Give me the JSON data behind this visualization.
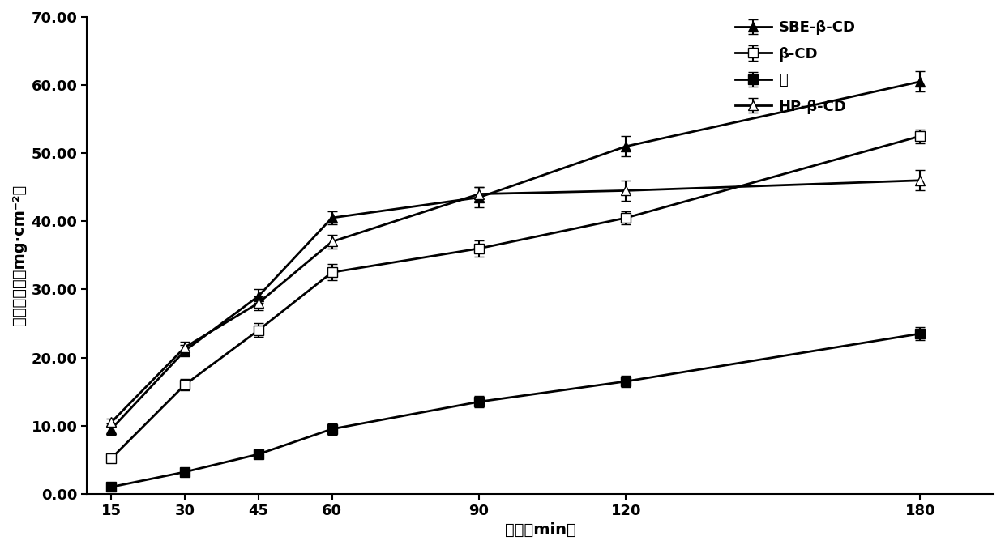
{
  "x": [
    15,
    30,
    45,
    60,
    90,
    120,
    180
  ],
  "series": {
    "SBE-β-CD": {
      "y": [
        9.5,
        21.0,
        29.0,
        40.5,
        43.5,
        51.0,
        60.5
      ],
      "yerr": [
        0.8,
        0.8,
        1.0,
        1.0,
        1.5,
        1.5,
        1.5
      ],
      "marker": "^",
      "fillstyle": "full",
      "label": "SBE-β-CD"
    },
    "β-CD": {
      "y": [
        5.2,
        16.0,
        24.0,
        32.5,
        36.0,
        40.5,
        52.5
      ],
      "yerr": [
        0.5,
        0.8,
        1.0,
        1.2,
        1.2,
        1.0,
        1.0
      ],
      "marker": "s",
      "fillstyle": "none",
      "label": "β-CD"
    },
    "无": {
      "y": [
        1.0,
        3.2,
        5.8,
        9.5,
        13.5,
        16.5,
        23.5
      ],
      "yerr": [
        0.3,
        0.4,
        0.5,
        0.8,
        0.8,
        0.8,
        1.0
      ],
      "marker": "s",
      "fillstyle": "full",
      "label": "无"
    },
    "HP-β-CD": {
      "y": [
        10.5,
        21.5,
        28.0,
        37.0,
        44.0,
        44.5,
        46.0
      ],
      "yerr": [
        0.5,
        0.8,
        1.0,
        1.0,
        1.0,
        1.5,
        1.5
      ],
      "marker": "^",
      "fillstyle": "none",
      "label": "HP-β-CD"
    }
  },
  "xlabel": "时间（min）",
  "ylabel": "累积渗透量（mg·cm⁻²）",
  "ylim": [
    0.0,
    70.0
  ],
  "yticks": [
    0.0,
    10.0,
    20.0,
    30.0,
    40.0,
    50.0,
    60.0,
    70.0
  ],
  "xticks": [
    15,
    30,
    45,
    60,
    90,
    120,
    180
  ],
  "color": "#000000",
  "linewidth": 2.0,
  "markersize": 8,
  "capsize": 4,
  "legend_order": [
    "SBE-β-CD",
    "β-CD",
    "无",
    "HP-β-CD"
  ]
}
